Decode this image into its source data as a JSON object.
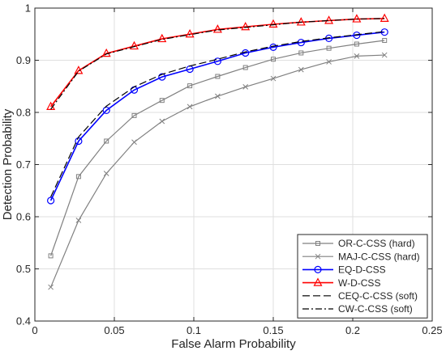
{
  "chart_data": {
    "type": "line",
    "title": "",
    "xlabel": "False Alarm Probability",
    "ylabel": "Detection Probability",
    "xlim": [
      0,
      0.25
    ],
    "ylim": [
      0.4,
      1
    ],
    "xticks": [
      0,
      0.05,
      0.1,
      0.15,
      0.2,
      0.25
    ],
    "xtick_labels": [
      "0",
      "0.05",
      "0.1",
      "0.15",
      "0.2",
      "0.25"
    ],
    "yticks": [
      0.4,
      0.5,
      0.6,
      0.7,
      0.8,
      0.9,
      1
    ],
    "ytick_labels": [
      "0.4",
      "0.5",
      "0.6",
      "0.7",
      "0.8",
      "0.9",
      "1"
    ],
    "grid": true,
    "legend_position": "bottom-right",
    "x": [
      0.01,
      0.0275,
      0.045,
      0.0625,
      0.08,
      0.0975,
      0.115,
      0.1325,
      0.15,
      0.1675,
      0.185,
      0.2025,
      0.22
    ],
    "series": [
      {
        "name": "OR-C-CSS (hard)",
        "color": "#808080",
        "line": "solid",
        "marker": "square",
        "values": [
          0.525,
          0.677,
          0.745,
          0.794,
          0.823,
          0.851,
          0.869,
          0.886,
          0.902,
          0.914,
          0.923,
          0.931,
          0.938
        ]
      },
      {
        "name": "MAJ-C-CSS (hard)",
        "color": "#808080",
        "line": "solid",
        "marker": "x",
        "values": [
          0.465,
          0.593,
          0.683,
          0.743,
          0.783,
          0.811,
          0.831,
          0.849,
          0.865,
          0.882,
          0.897,
          0.908,
          0.91
        ]
      },
      {
        "name": "EQ-D-CSS",
        "color": "#0000ff",
        "line": "solid",
        "marker": "circle",
        "values": [
          0.631,
          0.745,
          0.804,
          0.843,
          0.868,
          0.883,
          0.898,
          0.914,
          0.925,
          0.934,
          0.942,
          0.948,
          0.954
        ]
      },
      {
        "name": "W-D-CSS",
        "color": "#ff0000",
        "line": "solid",
        "marker": "triangle",
        "values": [
          0.811,
          0.88,
          0.913,
          0.927,
          0.941,
          0.95,
          0.959,
          0.964,
          0.969,
          0.973,
          0.976,
          0.979,
          0.98
        ]
      },
      {
        "name": "CEQ-C-CSS (soft)",
        "color": "#000000",
        "line": "dashed",
        "marker": "none",
        "values": [
          0.638,
          0.753,
          0.812,
          0.849,
          0.873,
          0.889,
          0.902,
          0.916,
          0.927,
          0.936,
          0.943,
          0.949,
          0.955
        ]
      },
      {
        "name": "CW-C-CSS (soft)",
        "color": "#000000",
        "line": "dashdot",
        "marker": "none",
        "values": [
          0.806,
          0.879,
          0.912,
          0.926,
          0.94,
          0.949,
          0.958,
          0.963,
          0.968,
          0.973,
          0.976,
          0.979,
          0.98
        ]
      }
    ]
  }
}
